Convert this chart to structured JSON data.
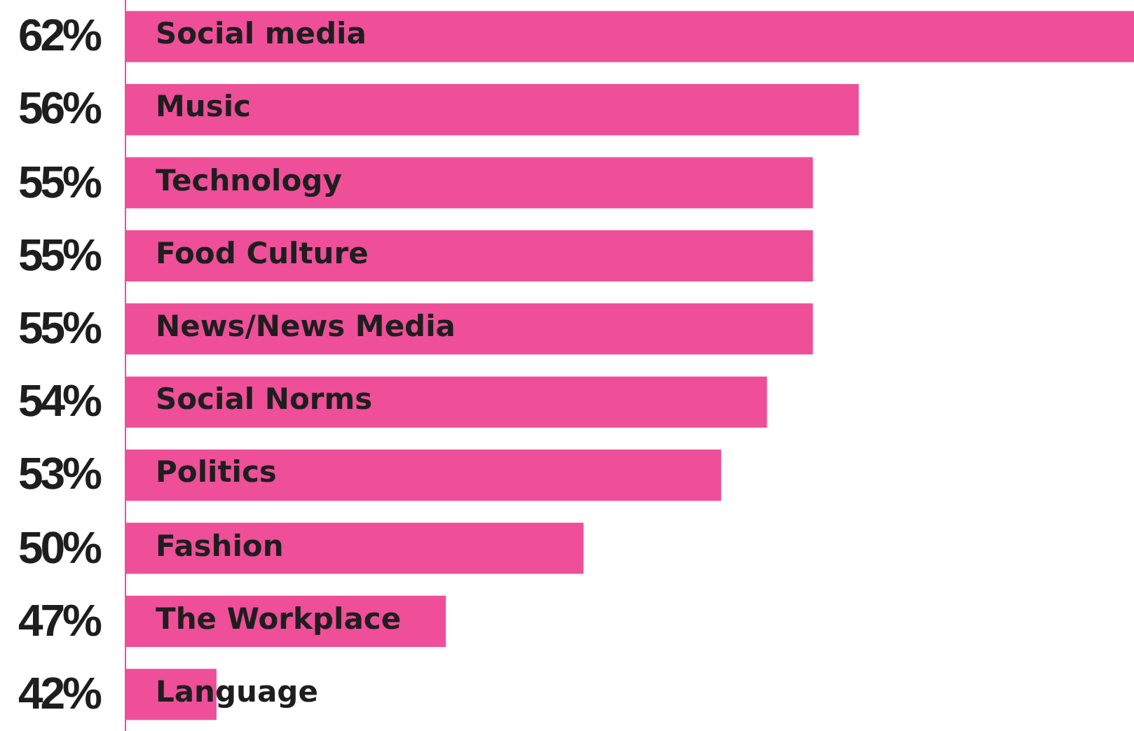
{
  "chart_data": {
    "type": "bar",
    "orientation": "horizontal",
    "categories": [
      "Social media",
      "Music",
      "Technology",
      "Food Culture",
      "News/News Media",
      "Social Norms",
      "Politics",
      "Fashion",
      "The Workplace",
      "Language"
    ],
    "values": [
      62,
      56,
      55,
      55,
      55,
      54,
      53,
      50,
      47,
      42
    ],
    "value_labels": [
      "62%",
      "56%",
      "55%",
      "55%",
      "55%",
      "54%",
      "53%",
      "50%",
      "47%",
      "42%"
    ],
    "color": "#ee4f98",
    "xlim": [
      40,
      62
    ]
  }
}
